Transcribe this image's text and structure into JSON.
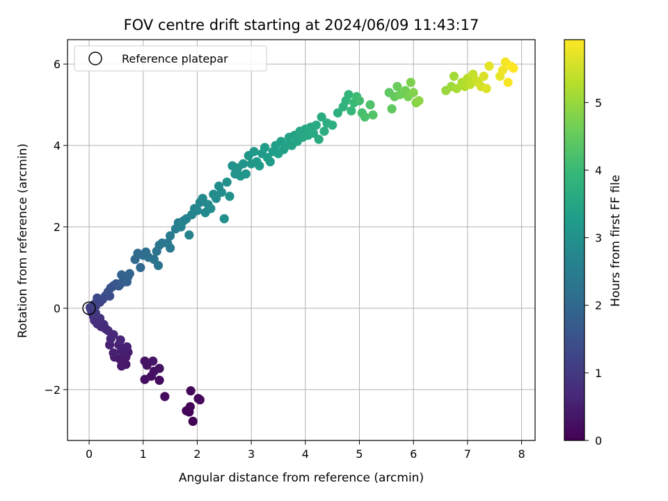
{
  "chart_data": {
    "type": "scatter",
    "title": "FOV centre drift starting at 2024/06/09 11:43:17",
    "xlabel": "Angular distance from reference (arcmin)",
    "ylabel": "Rotation from reference (arcmin)",
    "xlim": [
      -0.4,
      8.25
    ],
    "ylim": [
      -3.25,
      6.6
    ],
    "xticks": [
      0,
      1,
      2,
      3,
      4,
      5,
      6,
      7,
      8
    ],
    "yticks": [
      -2,
      0,
      2,
      4,
      6
    ],
    "xtick_labels": [
      "0",
      "1",
      "2",
      "3",
      "4",
      "5",
      "6",
      "7",
      "8"
    ],
    "ytick_labels": [
      "−2",
      "0",
      "2",
      "4",
      "6"
    ],
    "grid": true,
    "legend": {
      "position": "top-left",
      "entries": [
        "Reference platepar"
      ]
    },
    "reference_point": {
      "x": 0,
      "y": 0,
      "label": "Reference platepar"
    },
    "colorbar": {
      "label": "Hours from first FF file",
      "colormap": "viridis",
      "range": [
        0,
        5.93
      ],
      "ticks": [
        0,
        1,
        2,
        3,
        4,
        5
      ],
      "tick_labels": [
        "0",
        "1",
        "2",
        "3",
        "4",
        "5"
      ],
      "colors": [
        "#440154",
        "#482878",
        "#3e4989",
        "#31688e",
        "#26828e",
        "#1f9e89",
        "#35b779",
        "#6ece58",
        "#b5de2b",
        "#fde725"
      ]
    },
    "series": [
      {
        "points": [
          [
            1.92,
            -2.78,
            0.02
          ],
          [
            1.85,
            -2.55,
            0.04
          ],
          [
            1.8,
            -2.52,
            0.06
          ],
          [
            1.87,
            -2.42,
            0.08
          ],
          [
            2.02,
            -2.22,
            0.1
          ],
          [
            2.05,
            -2.25,
            0.12
          ],
          [
            1.88,
            -2.03,
            0.14
          ],
          [
            1.4,
            -2.17,
            0.16
          ],
          [
            1.3,
            -1.77,
            0.2
          ],
          [
            1.03,
            -1.75,
            0.22
          ],
          [
            1.15,
            -1.67,
            0.24
          ],
          [
            1.2,
            -1.55,
            0.26
          ],
          [
            1.3,
            -1.48,
            0.28
          ],
          [
            1.07,
            -1.4,
            0.3
          ],
          [
            1.03,
            -1.3,
            0.32
          ],
          [
            1.18,
            -1.3,
            0.34
          ],
          [
            0.68,
            -1.38,
            0.38
          ],
          [
            0.6,
            -1.42,
            0.4
          ],
          [
            0.57,
            -1.25,
            0.42
          ],
          [
            0.47,
            -1.2,
            0.44
          ],
          [
            0.68,
            -1.2,
            0.46
          ],
          [
            0.72,
            -1.08,
            0.48
          ],
          [
            0.6,
            -1.05,
            0.5
          ],
          [
            0.45,
            -1.1,
            0.52
          ],
          [
            0.7,
            -0.95,
            0.54
          ],
          [
            0.55,
            -0.9,
            0.56
          ],
          [
            0.38,
            -0.9,
            0.58
          ],
          [
            0.58,
            -0.78,
            0.6
          ],
          [
            0.4,
            -0.75,
            0.64
          ],
          [
            0.45,
            -0.65,
            0.66
          ],
          [
            0.35,
            -0.55,
            0.7
          ],
          [
            0.3,
            -0.5,
            0.72
          ],
          [
            0.22,
            -0.45,
            0.74
          ],
          [
            0.27,
            -0.4,
            0.76
          ],
          [
            0.15,
            -0.38,
            0.78
          ],
          [
            0.1,
            -0.3,
            0.8
          ],
          [
            0.2,
            -0.25,
            0.84
          ],
          [
            0.08,
            -0.2,
            0.88
          ],
          [
            0.05,
            -0.1,
            0.92
          ],
          [
            0.12,
            -0.12,
            0.96
          ],
          [
            0.03,
            -0.02,
            1.0
          ],
          [
            0.02,
            0.02,
            1.05
          ],
          [
            0.12,
            0.05,
            1.1
          ],
          [
            0.1,
            0.1,
            1.15
          ],
          [
            0.2,
            0.15,
            1.2
          ],
          [
            0.25,
            0.22,
            1.25
          ],
          [
            0.15,
            0.25,
            1.3
          ],
          [
            0.3,
            0.3,
            1.35
          ],
          [
            0.38,
            0.3,
            1.4
          ],
          [
            0.35,
            0.4,
            1.45
          ],
          [
            0.4,
            0.5,
            1.5
          ],
          [
            0.45,
            0.55,
            1.55
          ],
          [
            0.5,
            0.6,
            1.6
          ],
          [
            0.55,
            0.55,
            1.65
          ],
          [
            0.6,
            0.62,
            1.7
          ],
          [
            0.65,
            0.7,
            1.75
          ],
          [
            0.7,
            0.65,
            1.8
          ],
          [
            0.72,
            0.78,
            1.85
          ],
          [
            0.6,
            0.82,
            1.88
          ],
          [
            0.75,
            0.85,
            1.9
          ],
          [
            0.95,
            1.0,
            1.95
          ],
          [
            0.85,
            1.2,
            2.0
          ],
          [
            0.9,
            1.35,
            2.05
          ],
          [
            1.0,
            1.3,
            2.1
          ],
          [
            1.05,
            1.38,
            2.15
          ],
          [
            1.1,
            1.25,
            2.2
          ],
          [
            1.2,
            1.2,
            2.25
          ],
          [
            1.25,
            1.4,
            2.28
          ],
          [
            1.28,
            1.05,
            2.3
          ],
          [
            1.3,
            1.55,
            2.32
          ],
          [
            1.35,
            1.6,
            2.35
          ],
          [
            1.45,
            1.6,
            2.38
          ],
          [
            1.5,
            1.48,
            2.4
          ],
          [
            1.5,
            1.78,
            2.45
          ],
          [
            1.6,
            1.95,
            2.5
          ],
          [
            1.65,
            2.1,
            2.55
          ],
          [
            1.7,
            2.0,
            2.58
          ],
          [
            1.75,
            2.15,
            2.6
          ],
          [
            1.8,
            2.2,
            2.62
          ],
          [
            1.85,
            1.8,
            2.65
          ],
          [
            1.9,
            2.3,
            2.68
          ],
          [
            1.95,
            2.45,
            2.7
          ],
          [
            2.0,
            2.4,
            2.72
          ],
          [
            2.05,
            2.6,
            2.75
          ],
          [
            2.1,
            2.7,
            2.78
          ],
          [
            2.15,
            2.35,
            2.8
          ],
          [
            2.2,
            2.55,
            2.82
          ],
          [
            2.25,
            2.45,
            2.84
          ],
          [
            2.3,
            2.8,
            2.86
          ],
          [
            2.35,
            2.7,
            2.88
          ],
          [
            2.4,
            3.0,
            2.9
          ],
          [
            2.45,
            2.85,
            2.92
          ],
          [
            2.5,
            2.2,
            2.94
          ],
          [
            2.55,
            3.1,
            2.96
          ],
          [
            2.6,
            2.75,
            2.98
          ],
          [
            2.65,
            3.5,
            3.0
          ],
          [
            2.7,
            3.3,
            3.02
          ],
          [
            2.75,
            3.45,
            3.04
          ],
          [
            2.8,
            3.25,
            3.06
          ],
          [
            2.85,
            3.55,
            3.08
          ],
          [
            2.9,
            3.3,
            3.1
          ],
          [
            2.95,
            3.75,
            3.12
          ],
          [
            3.0,
            3.55,
            3.14
          ],
          [
            3.05,
            3.85,
            3.16
          ],
          [
            3.1,
            3.6,
            3.18
          ],
          [
            3.15,
            3.5,
            3.2
          ],
          [
            3.2,
            3.8,
            3.22
          ],
          [
            3.25,
            3.95,
            3.24
          ],
          [
            3.3,
            3.7,
            3.26
          ],
          [
            3.35,
            3.6,
            3.28
          ],
          [
            3.4,
            3.85,
            3.3
          ],
          [
            3.45,
            4.0,
            3.32
          ],
          [
            3.5,
            3.8,
            3.34
          ],
          [
            3.55,
            4.1,
            3.36
          ],
          [
            3.6,
            3.9,
            3.38
          ],
          [
            3.65,
            4.0,
            3.4
          ],
          [
            3.7,
            4.2,
            3.42
          ],
          [
            3.75,
            4.0,
            3.44
          ],
          [
            3.8,
            4.25,
            3.46
          ],
          [
            3.85,
            4.1,
            3.48
          ],
          [
            3.9,
            4.35,
            3.5
          ],
          [
            3.95,
            4.2,
            3.52
          ],
          [
            4.0,
            4.4,
            3.54
          ],
          [
            4.05,
            4.25,
            3.56
          ],
          [
            4.1,
            4.45,
            3.58
          ],
          [
            4.15,
            4.3,
            3.6
          ],
          [
            4.2,
            4.5,
            3.62
          ],
          [
            4.25,
            4.15,
            3.64
          ],
          [
            4.3,
            4.7,
            3.66
          ],
          [
            4.35,
            4.35,
            3.68
          ],
          [
            4.4,
            4.55,
            3.7
          ],
          [
            4.5,
            4.5,
            3.72
          ],
          [
            4.6,
            4.8,
            3.75
          ],
          [
            4.7,
            4.95,
            3.8
          ],
          [
            4.75,
            5.1,
            3.85
          ],
          [
            4.8,
            5.25,
            3.9
          ],
          [
            4.85,
            4.85,
            3.95
          ],
          [
            4.9,
            5.05,
            4.0
          ],
          [
            4.95,
            5.2,
            4.05
          ],
          [
            5.0,
            5.1,
            4.1
          ],
          [
            5.05,
            4.8,
            4.15
          ],
          [
            5.1,
            4.7,
            4.2
          ],
          [
            5.2,
            5.0,
            4.25
          ],
          [
            5.25,
            4.75,
            4.3
          ],
          [
            5.55,
            5.3,
            4.4
          ],
          [
            5.6,
            4.9,
            4.45
          ],
          [
            5.65,
            5.2,
            4.5
          ],
          [
            5.7,
            5.45,
            4.55
          ],
          [
            5.75,
            5.25,
            4.6
          ],
          [
            5.85,
            5.35,
            4.65
          ],
          [
            5.9,
            5.2,
            4.7
          ],
          [
            5.95,
            5.55,
            4.75
          ],
          [
            6.0,
            5.3,
            4.8
          ],
          [
            6.05,
            5.05,
            4.85
          ],
          [
            6.1,
            5.1,
            4.9
          ],
          [
            6.6,
            5.35,
            5.0
          ],
          [
            6.7,
            5.45,
            5.05
          ],
          [
            6.75,
            5.7,
            5.1
          ],
          [
            6.8,
            5.4,
            5.15
          ],
          [
            6.9,
            5.55,
            5.2
          ],
          [
            6.95,
            5.45,
            5.25
          ],
          [
            7.0,
            5.65,
            5.3
          ],
          [
            7.05,
            5.5,
            5.35
          ],
          [
            7.1,
            5.75,
            5.4
          ],
          [
            7.15,
            5.6,
            5.45
          ],
          [
            7.2,
            5.55,
            5.5
          ],
          [
            7.25,
            5.45,
            5.55
          ],
          [
            7.3,
            5.7,
            5.6
          ],
          [
            7.35,
            5.4,
            5.65
          ],
          [
            7.4,
            5.95,
            5.7
          ],
          [
            7.6,
            5.7,
            5.75
          ],
          [
            7.65,
            5.85,
            5.8
          ],
          [
            7.7,
            6.05,
            5.85
          ],
          [
            7.75,
            5.55,
            5.88
          ],
          [
            7.8,
            5.95,
            5.91
          ],
          [
            7.85,
            5.9,
            5.93
          ]
        ]
      }
    ]
  }
}
